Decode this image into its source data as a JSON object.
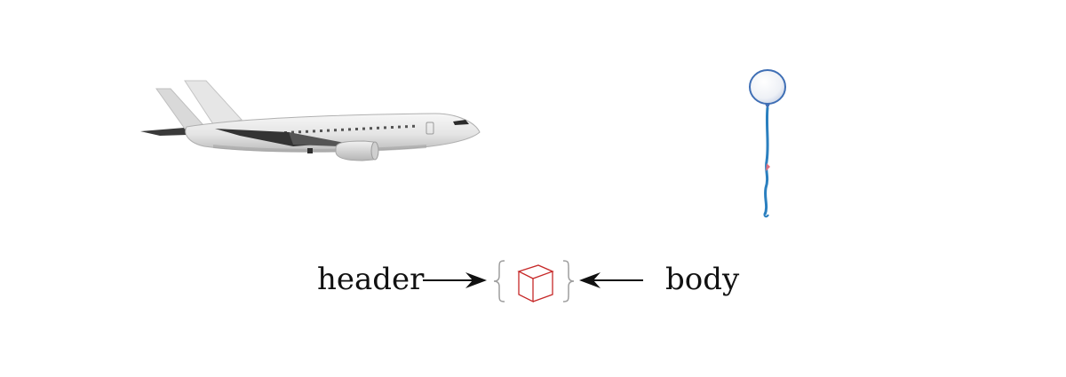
{
  "diagram": {
    "left_label": "header",
    "right_label": "body",
    "objects": {
      "left_object": "airplane",
      "right_object": "balloon",
      "center_object": "cube-in-braces"
    },
    "colors": {
      "text": "#111111",
      "arrow": "#111111",
      "cube": "#c62828",
      "brace": "#9e9e9e",
      "balloon_outline": "#3f6fb5",
      "balloon_ribbon": "#2a7fbf",
      "airplane_body": "#e9e9e9"
    }
  }
}
